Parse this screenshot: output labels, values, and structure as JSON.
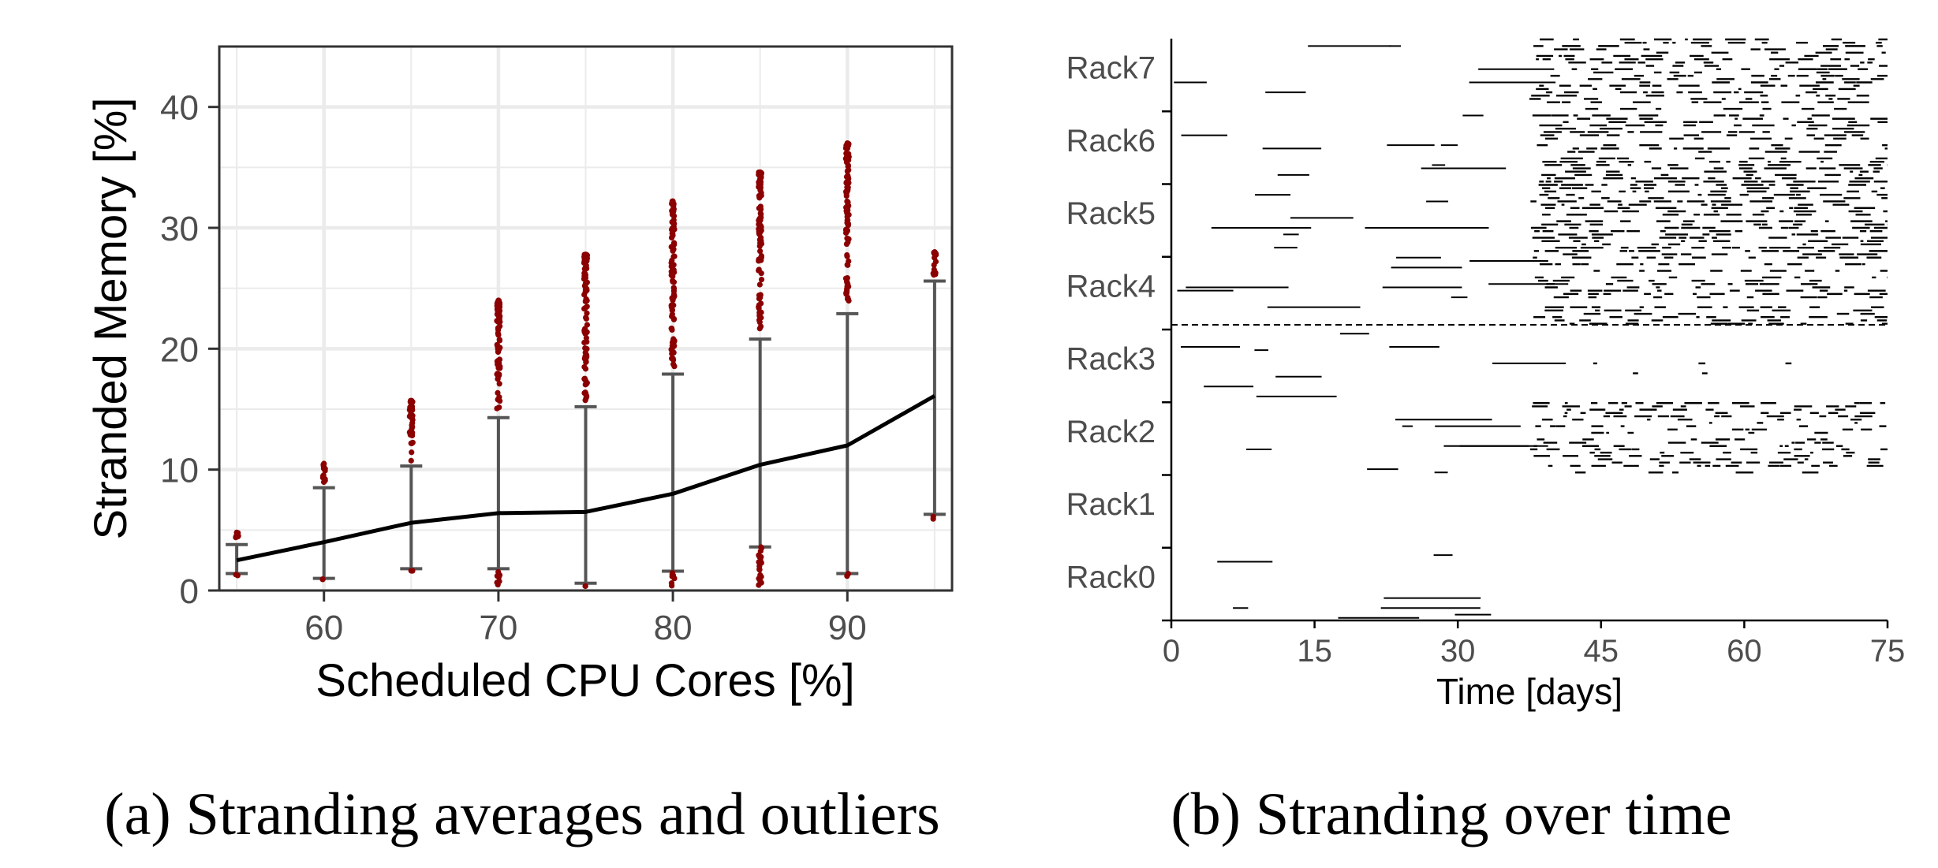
{
  "chart_data": [
    {
      "type": "line",
      "xlabel": "Scheduled CPU Cores [%]",
      "ylabel": "Stranded Memory [%]",
      "xlim": [
        54,
        96
      ],
      "ylim": [
        0,
        45
      ],
      "xticks": [
        60,
        70,
        80,
        90
      ],
      "yticks": [
        0,
        10,
        20,
        30,
        40
      ],
      "grid": true,
      "colors": {
        "line": "#000000",
        "errorbar": "#555555",
        "outlier": "#8b0000",
        "grid": "#ebebeb",
        "frame": "#333333"
      },
      "mean_line": {
        "x": [
          55,
          60,
          65,
          70,
          75,
          80,
          85,
          90,
          95
        ],
        "y": [
          2.5,
          4.0,
          5.6,
          6.4,
          6.5,
          8.0,
          10.4,
          12.0,
          16.1
        ]
      },
      "error_bars": [
        {
          "x": 55,
          "low": 1.4,
          "high": 3.8
        },
        {
          "x": 60,
          "low": 1.0,
          "high": 8.5
        },
        {
          "x": 65,
          "low": 1.8,
          "high": 10.3
        },
        {
          "x": 70,
          "low": 1.8,
          "high": 14.3
        },
        {
          "x": 75,
          "low": 0.6,
          "high": 15.2
        },
        {
          "x": 80,
          "low": 1.6,
          "high": 17.9
        },
        {
          "x": 85,
          "low": 3.6,
          "high": 20.8
        },
        {
          "x": 90,
          "low": 1.4,
          "high": 22.9
        },
        {
          "x": 95,
          "low": 6.3,
          "high": 25.6
        }
      ],
      "outliers": [
        {
          "x": 55,
          "low_min": 1.2,
          "high_max": 4.8
        },
        {
          "x": 60,
          "low_min": 0.8,
          "high_max": 10.5
        },
        {
          "x": 65,
          "low_min": 1.3,
          "high_max": 15.7
        },
        {
          "x": 70,
          "low_min": 0.4,
          "high_max": 24.0
        },
        {
          "x": 75,
          "low_min": 0.3,
          "high_max": 27.8
        },
        {
          "x": 80,
          "low_min": 0.3,
          "high_max": 32.2
        },
        {
          "x": 85,
          "low_min": 0.4,
          "high_max": 34.6
        },
        {
          "x": 90,
          "low_min": 1.0,
          "high_max": 37.0
        },
        {
          "x": 95,
          "low_min": 5.9,
          "high_max": 28.0
        }
      ]
    },
    {
      "type": "heatmap",
      "xlabel": "Time [days]",
      "ylabel": "",
      "xlim": [
        0,
        75
      ],
      "xticks": [
        0,
        15,
        30,
        45,
        60,
        75
      ],
      "racks": [
        "Rack7",
        "Rack6",
        "Rack5",
        "Rack4",
        "Rack3",
        "Rack2",
        "Rack1",
        "Rack0"
      ],
      "colors": {
        "mark": "#000000",
        "background": "#ffffff"
      },
      "dense_after_day": 37.5,
      "density": {
        "Rack7": 0.55,
        "Rack6": 0.6,
        "Rack5": 0.6,
        "Rack4": 0.5,
        "Rack3": 0.12,
        "Rack2": 0.45,
        "Rack1": 0.0,
        "Rack0": 0.06
      }
    }
  ],
  "captions": {
    "a": "(a) Stranding averages and outliers",
    "b": "(b) Stranding over time"
  }
}
